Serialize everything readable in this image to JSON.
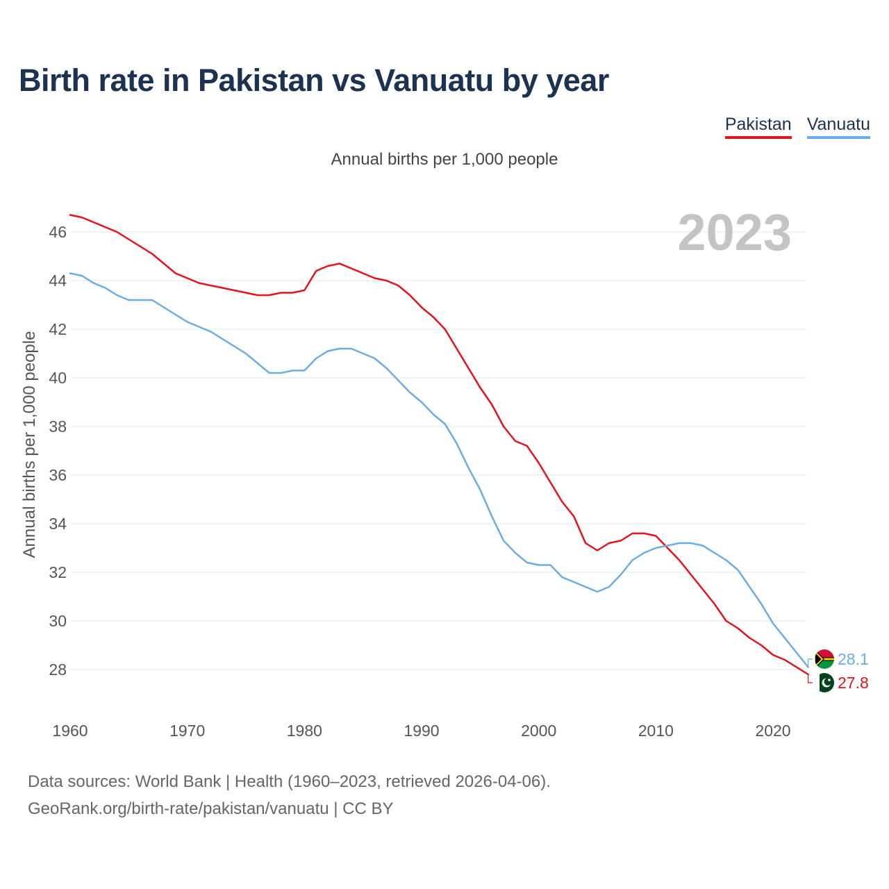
{
  "chart_data": {
    "type": "line",
    "title": "Birth rate in Pakistan vs Vanuatu by year",
    "subtitle": "Annual births per 1,000 people",
    "ylabel": "Annual births per 1,000 people",
    "xlabel": "",
    "year_label": "2023",
    "xlim": [
      1960,
      2023
    ],
    "ylim": [
      26.8,
      47.5
    ],
    "x_ticks": [
      1960,
      1970,
      1980,
      1990,
      2000,
      2010,
      2020
    ],
    "y_ticks": [
      28,
      30,
      32,
      34,
      36,
      38,
      40,
      42,
      44,
      46
    ],
    "x": [
      1960,
      1961,
      1962,
      1963,
      1964,
      1965,
      1966,
      1967,
      1968,
      1969,
      1970,
      1971,
      1972,
      1973,
      1974,
      1975,
      1976,
      1977,
      1978,
      1979,
      1980,
      1981,
      1982,
      1983,
      1984,
      1985,
      1986,
      1987,
      1988,
      1989,
      1990,
      1991,
      1992,
      1993,
      1994,
      1995,
      1996,
      1997,
      1998,
      1999,
      2000,
      2001,
      2002,
      2003,
      2004,
      2005,
      2006,
      2007,
      2008,
      2009,
      2010,
      2011,
      2012,
      2013,
      2014,
      2015,
      2016,
      2017,
      2018,
      2019,
      2020,
      2021,
      2022,
      2023
    ],
    "series": [
      {
        "name": "Pakistan",
        "color": "#e8111b",
        "end_label": "27.8",
        "values": [
          46.7,
          46.6,
          46.4,
          46.2,
          46.0,
          45.7,
          45.4,
          45.1,
          44.7,
          44.3,
          44.1,
          43.9,
          43.8,
          43.7,
          43.6,
          43.5,
          43.4,
          43.4,
          43.5,
          43.5,
          43.6,
          44.4,
          44.6,
          44.7,
          44.5,
          44.3,
          44.1,
          44.0,
          43.8,
          43.4,
          42.9,
          42.5,
          42.0,
          41.2,
          40.4,
          39.6,
          38.9,
          38.0,
          37.4,
          37.2,
          36.5,
          35.7,
          34.9,
          34.3,
          33.2,
          32.9,
          33.2,
          33.3,
          33.6,
          33.6,
          33.5,
          33.0,
          32.5,
          31.9,
          31.3,
          30.7,
          30.0,
          29.7,
          29.3,
          29.0,
          28.6,
          28.4,
          28.1,
          27.8
        ]
      },
      {
        "name": "Vanuatu",
        "color": "#6aace6",
        "end_label": "28.1",
        "values": [
          44.3,
          44.2,
          43.9,
          43.7,
          43.4,
          43.2,
          43.2,
          43.2,
          42.9,
          42.6,
          42.3,
          42.1,
          41.9,
          41.6,
          41.3,
          41.0,
          40.6,
          40.2,
          40.2,
          40.3,
          40.3,
          40.8,
          41.1,
          41.2,
          41.2,
          41.0,
          40.8,
          40.4,
          39.9,
          39.4,
          39.0,
          38.5,
          38.1,
          37.3,
          36.3,
          35.4,
          34.3,
          33.3,
          32.8,
          32.4,
          32.3,
          32.3,
          31.8,
          31.6,
          31.4,
          31.2,
          31.4,
          31.9,
          32.5,
          32.8,
          33.0,
          33.1,
          33.2,
          33.2,
          33.1,
          32.8,
          32.5,
          32.1,
          31.4,
          30.7,
          29.9,
          29.3,
          28.7,
          28.1
        ]
      }
    ]
  },
  "footer": {
    "line1": "Data sources: World Bank | Health (1960–2023, retrieved 2026-04-06).",
    "line2": "GeoRank.org/birth-rate/pakistan/vanuatu | CC BY"
  }
}
